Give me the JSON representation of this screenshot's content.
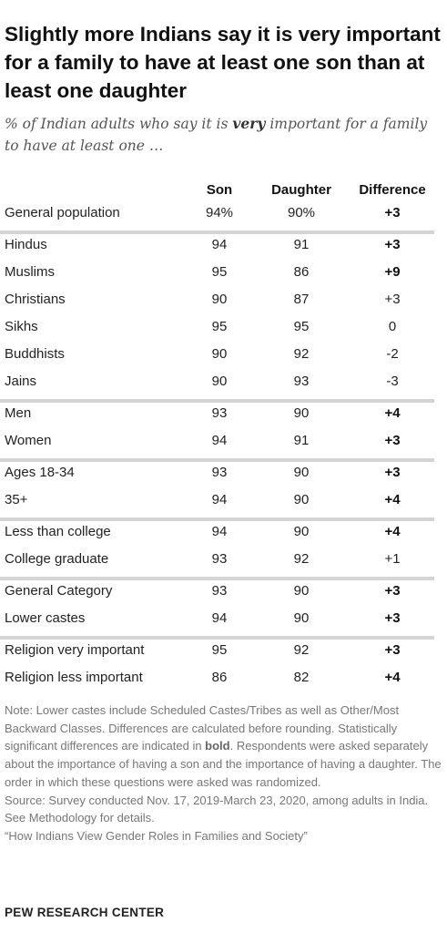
{
  "title": "Slightly more Indians say it is very important for a family to have at least one son than at least one daughter",
  "subtitle_before": "% of Indian adults who say it is ",
  "subtitle_emph": "very",
  "subtitle_after": " important for a family to have at least one …",
  "chart_data": {
    "type": "table",
    "columns": [
      "Son",
      "Daughter",
      "Difference"
    ],
    "groups": [
      [
        {
          "label": "General population",
          "son": "94%",
          "daughter": "90%",
          "difference": "+3",
          "significant": true
        }
      ],
      [
        {
          "label": "Hindus",
          "son": "94",
          "daughter": "91",
          "difference": "+3",
          "significant": true
        },
        {
          "label": "Muslims",
          "son": "95",
          "daughter": "86",
          "difference": "+9",
          "significant": true
        },
        {
          "label": "Christians",
          "son": "90",
          "daughter": "87",
          "difference": "+3",
          "significant": false
        },
        {
          "label": "Sikhs",
          "son": "95",
          "daughter": "95",
          "difference": "0",
          "significant": false
        },
        {
          "label": "Buddhists",
          "son": "90",
          "daughter": "92",
          "difference": "-2",
          "significant": false
        },
        {
          "label": "Jains",
          "son": "90",
          "daughter": "93",
          "difference": "-3",
          "significant": false
        }
      ],
      [
        {
          "label": "Men",
          "son": "93",
          "daughter": "90",
          "difference": "+4",
          "significant": true
        },
        {
          "label": "Women",
          "son": "94",
          "daughter": "91",
          "difference": "+3",
          "significant": true
        }
      ],
      [
        {
          "label": "Ages 18-34",
          "son": "93",
          "daughter": "90",
          "difference": "+3",
          "significant": true
        },
        {
          "label": "35+",
          "son": "94",
          "daughter": "90",
          "difference": "+4",
          "significant": true
        }
      ],
      [
        {
          "label": "Less than college",
          "son": "94",
          "daughter": "90",
          "difference": "+4",
          "significant": true
        },
        {
          "label": "College graduate",
          "son": "93",
          "daughter": "92",
          "difference": "+1",
          "significant": false
        }
      ],
      [
        {
          "label": "General Category",
          "son": "93",
          "daughter": "90",
          "difference": "+3",
          "significant": true
        },
        {
          "label": "Lower castes",
          "son": "94",
          "daughter": "90",
          "difference": "+3",
          "significant": true
        }
      ],
      [
        {
          "label": "Religion very important",
          "son": "95",
          "daughter": "92",
          "difference": "+3",
          "significant": true
        },
        {
          "label": "Religion less important",
          "son": "86",
          "daughter": "82",
          "difference": "+4",
          "significant": true
        }
      ]
    ]
  },
  "note": {
    "before_bold": "Note: Lower castes include Scheduled Castes/Tribes as well as Other/Most Backward Classes. Differences are calculated before rounding. Statistically significant differences are indicated in ",
    "bold_word": "bold",
    "after_bold": ". Respondents were asked separately about the importance of having a son and the importance of having a daughter. The order in which these questions were asked was randomized.",
    "source": "Source: Survey conducted Nov. 17, 2019-March 23, 2020, among adults in India. See Methodology for details.",
    "report": "“How Indians View Gender Roles in Families and Society”"
  },
  "brand": "PEW RESEARCH CENTER",
  "colors": {
    "separator": "#d4d4d4",
    "text": "#222222",
    "note": "#777777"
  }
}
